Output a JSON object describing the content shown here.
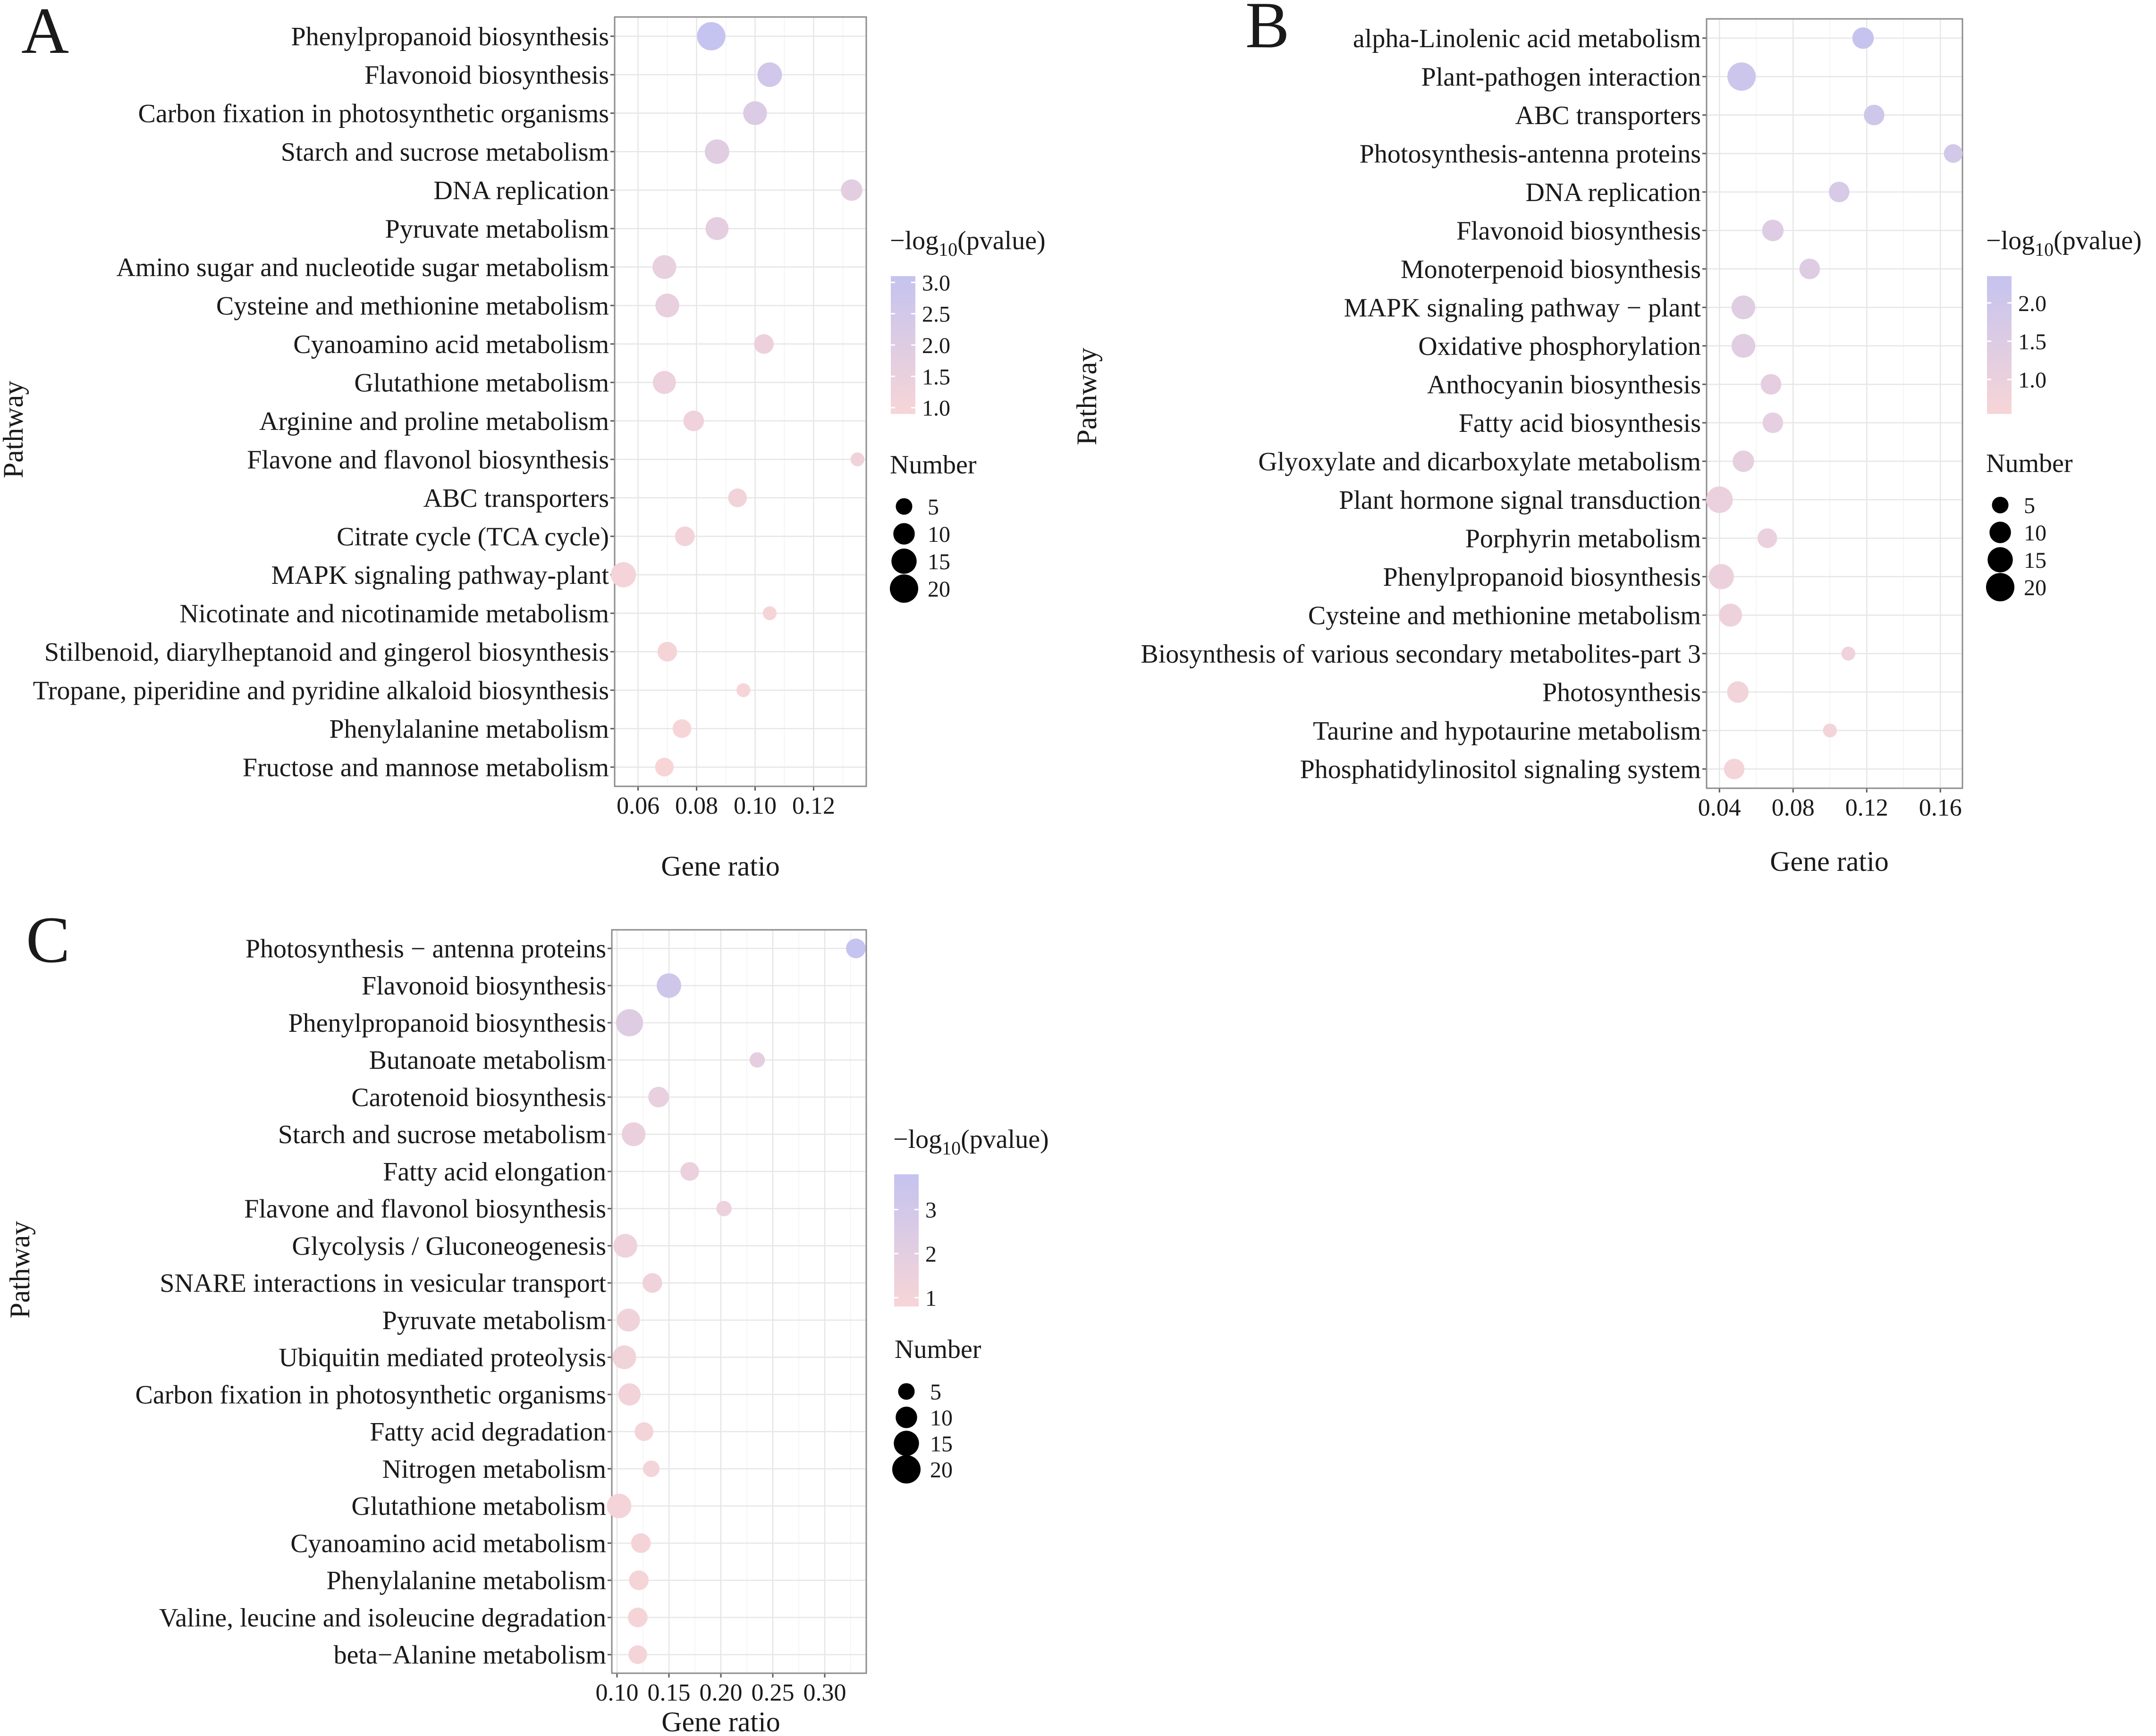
{
  "colors": {
    "low": "#f7d5d7",
    "high": "#c5c3ef",
    "size_legend_dot": "#000000"
  },
  "chart_data": [
    {
      "panel": "A",
      "type": "scatter",
      "xlabel": "Gene ratio",
      "ylabel": "Pathway",
      "xlim": [
        0.052,
        0.138
      ],
      "xticks": [
        0.06,
        0.08,
        0.1,
        0.12
      ],
      "xtick_labels": [
        "0.06",
        "0.08",
        "0.10",
        "0.12"
      ],
      "color_legend": {
        "title_main": "−log",
        "title_sub": "10",
        "title_end": "(pvalue)",
        "range": [
          0.9,
          3.1
        ],
        "ticks": [
          1.0,
          1.5,
          2.0,
          2.5,
          3.0
        ],
        "tick_labels": [
          "1.0",
          "1.5",
          "2.0",
          "2.5",
          "3.0"
        ]
      },
      "size_legend": {
        "title": "Number",
        "values": [
          5,
          10,
          15,
          20
        ],
        "labels": [
          "5",
          "10",
          "15",
          "20"
        ]
      },
      "categories": [
        "Phenylpropanoid biosynthesis",
        "Flavonoid biosynthesis",
        "Carbon fixation in photosynthetic organisms",
        "Starch and sucrose metabolism",
        "DNA replication",
        "Pyruvate metabolism",
        "Amino sugar and nucleotide sugar metabolism",
        "Cysteine and methionine metabolism",
        "Cyanoamino acid metabolism",
        "Glutathione metabolism",
        "Arginine and proline metabolism",
        "Flavone and flavonol biosynthesis",
        "ABC transporters",
        "Citrate cycle (TCA cycle)",
        "MAPK signaling pathway-plant",
        "Nicotinate and nicotinamide metabolism",
        "Stilbenoid, diarylheptanoid and gingerol biosynthesis",
        "Tropane, piperidine and pyridine alkaloid biosynthesis",
        "Phenylalanine metabolism",
        "Fructose and mannose metabolism"
      ],
      "points": [
        {
          "x": 0.085,
          "number": 20,
          "log10p": 3.1
        },
        {
          "x": 0.105,
          "number": 14,
          "log10p": 2.6
        },
        {
          "x": 0.1,
          "number": 13,
          "log10p": 2.1
        },
        {
          "x": 0.087,
          "number": 14,
          "log10p": 1.9
        },
        {
          "x": 0.133,
          "number": 10,
          "log10p": 1.8
        },
        {
          "x": 0.087,
          "number": 12,
          "log10p": 1.7
        },
        {
          "x": 0.069,
          "number": 13,
          "log10p": 1.55
        },
        {
          "x": 0.07,
          "number": 13,
          "log10p": 1.5
        },
        {
          "x": 0.103,
          "number": 8,
          "log10p": 1.4
        },
        {
          "x": 0.069,
          "number": 12,
          "log10p": 1.35
        },
        {
          "x": 0.079,
          "number": 9,
          "log10p": 1.25
        },
        {
          "x": 0.135,
          "number": 3,
          "log10p": 1.2
        },
        {
          "x": 0.094,
          "number": 7,
          "log10p": 1.15
        },
        {
          "x": 0.076,
          "number": 8,
          "log10p": 1.1
        },
        {
          "x": 0.055,
          "number": 15,
          "log10p": 1.05
        },
        {
          "x": 0.105,
          "number": 3,
          "log10p": 1.0
        },
        {
          "x": 0.07,
          "number": 8,
          "log10p": 0.98
        },
        {
          "x": 0.096,
          "number": 3,
          "log10p": 0.95
        },
        {
          "x": 0.075,
          "number": 7,
          "log10p": 0.95
        },
        {
          "x": 0.069,
          "number": 7,
          "log10p": 0.9
        }
      ]
    },
    {
      "panel": "B",
      "type": "scatter",
      "xlabel": "Gene ratio",
      "ylabel": "Pathway",
      "xlim": [
        0.033,
        0.172
      ],
      "xticks": [
        0.04,
        0.08,
        0.12,
        0.16
      ],
      "xtick_labels": [
        "0.04",
        "0.08",
        "0.12",
        "0.16"
      ],
      "color_legend": {
        "title_main": "−log",
        "title_sub": "10",
        "title_end": "(pvalue)",
        "range": [
          0.55,
          2.35
        ],
        "ticks": [
          1.0,
          1.5,
          2.0
        ],
        "tick_labels": [
          "1.0",
          "1.5",
          "2.0"
        ]
      },
      "size_legend": {
        "title": "Number",
        "values": [
          5,
          10,
          15,
          20
        ],
        "labels": [
          "5",
          "10",
          "15",
          "20"
        ]
      },
      "categories": [
        "alpha-Linolenic acid metabolism",
        "Plant-pathogen interaction",
        "ABC transporters",
        "Photosynthesis-antenna proteins",
        "DNA replication",
        "Flavonoid biosynthesis",
        "Monoterpenoid biosynthesis",
        "MAPK signaling pathway − plant",
        "Oxidative phosphorylation",
        "Anthocyanin biosynthesis",
        "Fatty acid biosynthesis",
        "Glyoxylate and dicarboxylate metabolism",
        "Plant hormone signal transduction",
        "Porphyrin metabolism",
        "Phenylpropanoid biosynthesis",
        "Cysteine and methionine metabolism",
        "Biosynthesis of various secondary metabolites-part 3",
        "Photosynthesis",
        "Taurine and hypotaurine metabolism",
        "Phosphatidylinositol signaling system"
      ],
      "points": [
        {
          "x": 0.118,
          "number": 10,
          "log10p": 2.3
        },
        {
          "x": 0.052,
          "number": 20,
          "log10p": 2.1
        },
        {
          "x": 0.124,
          "number": 9,
          "log10p": 2.0
        },
        {
          "x": 0.167,
          "number": 7,
          "log10p": 1.9
        },
        {
          "x": 0.105,
          "number": 9,
          "log10p": 1.7
        },
        {
          "x": 0.069,
          "number": 10,
          "log10p": 1.5
        },
        {
          "x": 0.089,
          "number": 9,
          "log10p": 1.45
        },
        {
          "x": 0.053,
          "number": 13,
          "log10p": 1.4
        },
        {
          "x": 0.053,
          "number": 13,
          "log10p": 1.35
        },
        {
          "x": 0.068,
          "number": 9,
          "log10p": 1.25
        },
        {
          "x": 0.069,
          "number": 9,
          "log10p": 1.2
        },
        {
          "x": 0.053,
          "number": 10,
          "log10p": 1.15
        },
        {
          "x": 0.04,
          "number": 17,
          "log10p": 1.0
        },
        {
          "x": 0.066,
          "number": 8,
          "log10p": 1.0
        },
        {
          "x": 0.041,
          "number": 15,
          "log10p": 0.95
        },
        {
          "x": 0.046,
          "number": 12,
          "log10p": 0.9
        },
        {
          "x": 0.11,
          "number": 3,
          "log10p": 0.85
        },
        {
          "x": 0.05,
          "number": 10,
          "log10p": 0.75
        },
        {
          "x": 0.1,
          "number": 3,
          "log10p": 0.7
        },
        {
          "x": 0.048,
          "number": 9,
          "log10p": 0.65
        }
      ]
    },
    {
      "panel": "C",
      "type": "scatter",
      "xlabel": "Gene ratio",
      "ylabel": "Pathway",
      "xlim": [
        0.095,
        0.34
      ],
      "xticks": [
        0.1,
        0.15,
        0.2,
        0.25,
        0.3
      ],
      "xtick_labels": [
        "0.10",
        "0.15",
        "0.20",
        "0.25",
        "0.30"
      ],
      "color_legend": {
        "title_main": "−log",
        "title_sub": "10",
        "title_end": "(pvalue)",
        "range": [
          0.8,
          3.8
        ],
        "ticks": [
          1,
          2,
          3
        ],
        "tick_labels": [
          "1",
          "2",
          "3"
        ]
      },
      "size_legend": {
        "title": "Number",
        "values": [
          5,
          10,
          15,
          20
        ],
        "labels": [
          "5",
          "10",
          "15",
          "20"
        ]
      },
      "categories": [
        "Photosynthesis − antenna proteins",
        "Flavonoid biosynthesis",
        "Phenylpropanoid biosynthesis",
        "Butanoate metabolism",
        "Carotenoid biosynthesis",
        "Starch and sucrose metabolism",
        "Fatty acid elongation",
        "Flavone and flavonol biosynthesis",
        "Glycolysis / Gluconeogenesis",
        "SNARE interactions in vesicular transport",
        "Pyruvate metabolism",
        "Ubiquitin mediated proteolysis",
        "Carbon fixation in photosynthetic organisms",
        "Fatty acid degradation",
        "Nitrogen metabolism",
        "Glutathione metabolism",
        "Cyanoamino acid metabolism",
        "Phenylalanine metabolism",
        "Valine, leucine and isoleucine degradation",
        "beta−Alanine metabolism"
      ],
      "points": [
        {
          "x": 0.33,
          "number": 8,
          "log10p": 3.8
        },
        {
          "x": 0.15,
          "number": 14,
          "log10p": 3.2
        },
        {
          "x": 0.112,
          "number": 18,
          "log10p": 2.3
        },
        {
          "x": 0.235,
          "number": 4,
          "log10p": 1.9
        },
        {
          "x": 0.14,
          "number": 9,
          "log10p": 1.7
        },
        {
          "x": 0.116,
          "number": 13,
          "log10p": 1.6
        },
        {
          "x": 0.17,
          "number": 7,
          "log10p": 1.5
        },
        {
          "x": 0.203,
          "number": 4,
          "log10p": 1.4
        },
        {
          "x": 0.108,
          "number": 13,
          "log10p": 1.3
        },
        {
          "x": 0.134,
          "number": 8,
          "log10p": 1.25
        },
        {
          "x": 0.111,
          "number": 12,
          "log10p": 1.2
        },
        {
          "x": 0.107,
          "number": 13,
          "log10p": 1.15
        },
        {
          "x": 0.112,
          "number": 11,
          "log10p": 1.1
        },
        {
          "x": 0.126,
          "number": 7,
          "log10p": 1.05
        },
        {
          "x": 0.133,
          "number": 5,
          "log10p": 1.05
        },
        {
          "x": 0.102,
          "number": 14,
          "log10p": 1.0
        },
        {
          "x": 0.123,
          "number": 8,
          "log10p": 0.95
        },
        {
          "x": 0.121,
          "number": 8,
          "log10p": 0.95
        },
        {
          "x": 0.12,
          "number": 8,
          "log10p": 0.9
        },
        {
          "x": 0.12,
          "number": 7,
          "log10p": 0.9
        }
      ]
    }
  ]
}
